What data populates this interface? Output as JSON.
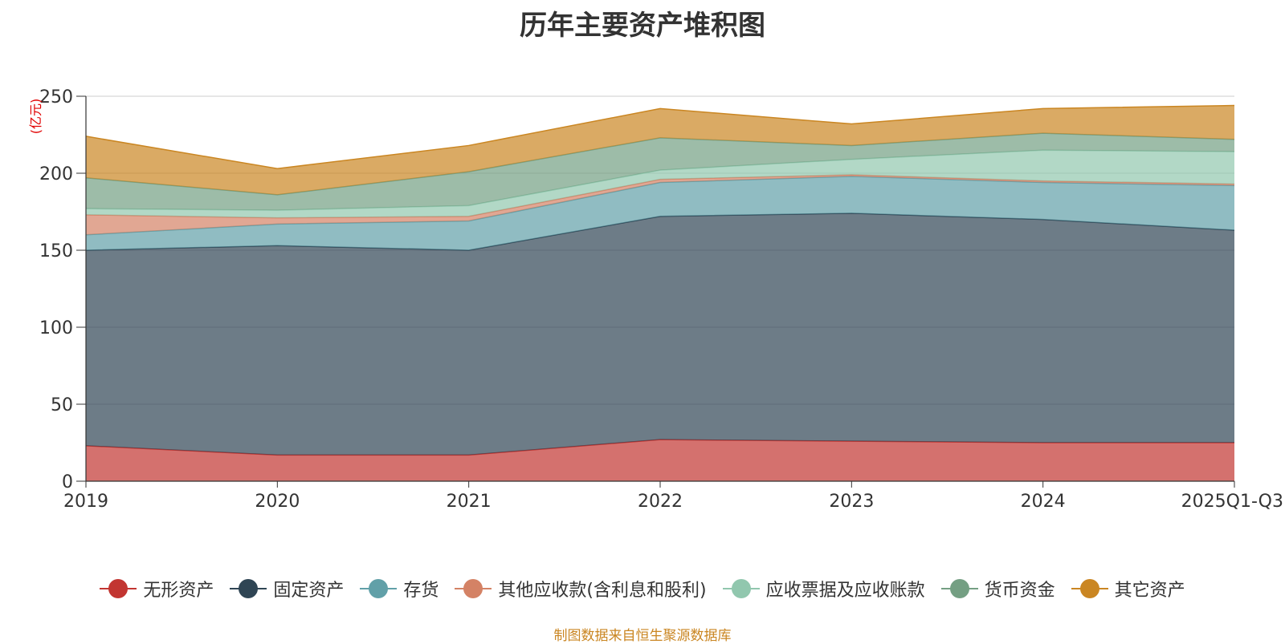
{
  "chart_data": {
    "type": "area",
    "stacked": true,
    "title": "历年主要资产堆积图",
    "ylabel": "(亿元)",
    "xlabel": "",
    "categories": [
      "2019",
      "2020",
      "2021",
      "2022",
      "2023",
      "2024",
      "2025Q1-Q3"
    ],
    "ylim": [
      0,
      250
    ],
    "yticks": [
      0,
      50,
      100,
      150,
      200,
      250
    ],
    "grid": true,
    "legend_position": "bottom",
    "series": [
      {
        "name": "无形资产",
        "color": "#c23531",
        "values": [
          23,
          17,
          17,
          27,
          26,
          25,
          25
        ]
      },
      {
        "name": "固定资产",
        "color": "#2f4554",
        "values": [
          127,
          136,
          133,
          145,
          148,
          145,
          138
        ]
      },
      {
        "name": "存货",
        "color": "#61a0a8",
        "values": [
          10,
          14,
          19,
          22,
          24,
          24,
          29
        ]
      },
      {
        "name": "其他应收款(含利息和股利)",
        "color": "#d48265",
        "values": [
          13,
          4,
          3,
          2,
          1,
          1,
          1
        ]
      },
      {
        "name": "应收票据及应收账款",
        "color": "#91c7ae",
        "values": [
          4,
          5,
          7,
          6,
          10,
          20,
          21
        ]
      },
      {
        "name": "货币资金",
        "color": "#749f83",
        "values": [
          20,
          10,
          22,
          21,
          9,
          11,
          8
        ]
      },
      {
        "name": "其它资产",
        "color": "#ca8622",
        "values": [
          27,
          17,
          17,
          19,
          14,
          16,
          22
        ]
      }
    ],
    "source_note": "制图数据来自恒生聚源数据库",
    "source_color": "#ca8622"
  }
}
